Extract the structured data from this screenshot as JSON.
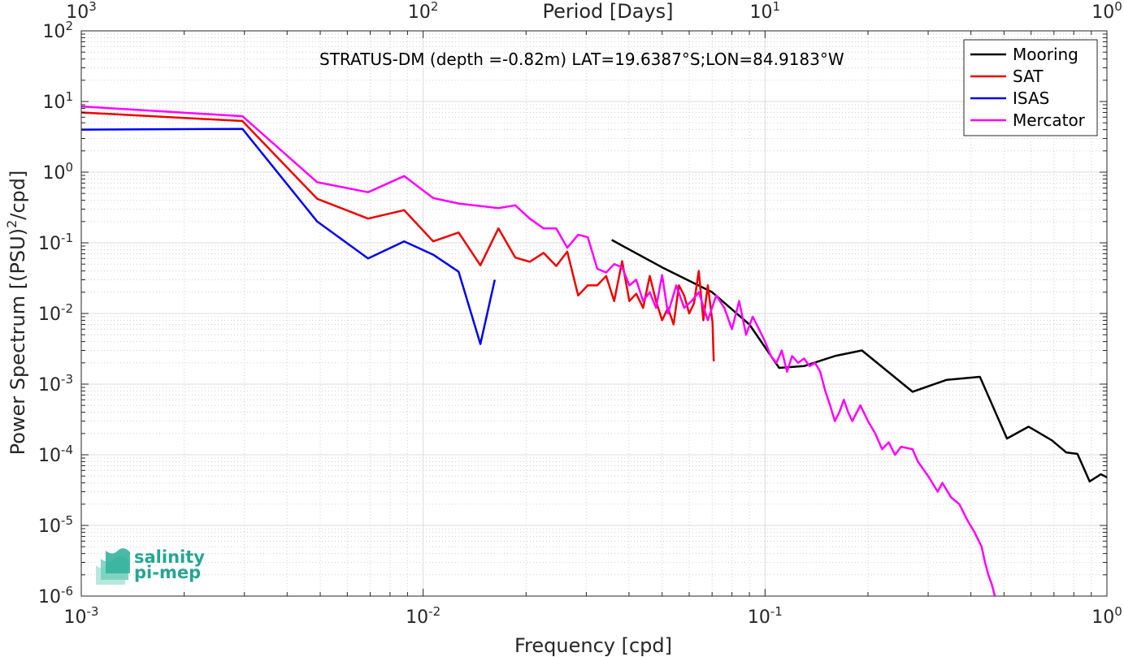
{
  "chart_data": {
    "type": "line",
    "title": "STRATUS-DM (depth =-0.82m) LAT=19.6387°S;LON=84.9183°W",
    "xlabel": "Frequency [cpd]",
    "ylabel": "Power Spectrum [(PSU)²/cpd]",
    "top_xlabel": "Period [Days]",
    "xscale": "log",
    "yscale": "log",
    "xlim": [
      0.001,
      1
    ],
    "ylim": [
      1e-06,
      100
    ],
    "grid": true,
    "legend_position": "top-right",
    "x_ticks": [
      {
        "value": 0.001,
        "base": "10",
        "exp": "-3"
      },
      {
        "value": 0.01,
        "base": "10",
        "exp": "-2"
      },
      {
        "value": 0.1,
        "base": "10",
        "exp": "-1"
      },
      {
        "value": 1,
        "base": "10",
        "exp": "0"
      }
    ],
    "top_ticks": [
      {
        "freq": 0.001,
        "base": "10",
        "exp": "3"
      },
      {
        "freq": 0.01,
        "base": "10",
        "exp": "2"
      },
      {
        "freq": 0.1,
        "base": "10",
        "exp": "1"
      },
      {
        "freq": 1,
        "base": "10",
        "exp": "0"
      }
    ],
    "y_ticks": [
      {
        "value": 1e-06,
        "base": "10",
        "exp": "-6"
      },
      {
        "value": 1e-05,
        "base": "10",
        "exp": "-5"
      },
      {
        "value": 0.0001,
        "base": "10",
        "exp": "-4"
      },
      {
        "value": 0.001,
        "base": "10",
        "exp": "-3"
      },
      {
        "value": 0.01,
        "base": "10",
        "exp": "-2"
      },
      {
        "value": 0.1,
        "base": "10",
        "exp": "-1"
      },
      {
        "value": 1,
        "base": "10",
        "exp": "0"
      },
      {
        "value": 10,
        "base": "10",
        "exp": "1"
      },
      {
        "value": 100,
        "base": "10",
        "exp": "2"
      }
    ],
    "series": [
      {
        "name": "Mooring",
        "color": "#000000",
        "points": [
          [
            0.0356,
            0.11
          ],
          [
            0.05,
            0.045
          ],
          [
            0.07,
            0.02
          ],
          [
            0.09,
            0.007
          ],
          [
            0.11,
            0.0017
          ],
          [
            0.13,
            0.0018
          ],
          [
            0.16,
            0.0025
          ],
          [
            0.192,
            0.003
          ],
          [
            0.27,
            0.00078
          ],
          [
            0.34,
            0.00115
          ],
          [
            0.425,
            0.00127
          ],
          [
            0.51,
            0.00017
          ],
          [
            0.59,
            0.00025
          ],
          [
            0.69,
            0.00016
          ],
          [
            0.76,
            0.000108
          ],
          [
            0.82,
            0.000103
          ],
          [
            0.89,
            4.2e-05
          ],
          [
            0.96,
            5.3e-05
          ],
          [
            1.0,
            4.8e-05
          ]
        ]
      },
      {
        "name": "SAT",
        "color": "#ee0000",
        "points": [
          [
            0.001,
            7.0
          ],
          [
            0.00296,
            5.3
          ],
          [
            0.0049,
            0.42
          ],
          [
            0.0069,
            0.22
          ],
          [
            0.0088,
            0.29
          ],
          [
            0.0107,
            0.105
          ],
          [
            0.0127,
            0.14
          ],
          [
            0.0147,
            0.048
          ],
          [
            0.0166,
            0.16
          ],
          [
            0.0186,
            0.062
          ],
          [
            0.0205,
            0.054
          ],
          [
            0.0225,
            0.072
          ],
          [
            0.0245,
            0.047
          ],
          [
            0.0264,
            0.075
          ],
          [
            0.0284,
            0.018
          ],
          [
            0.0303,
            0.025
          ],
          [
            0.0323,
            0.025
          ],
          [
            0.0343,
            0.034
          ],
          [
            0.0362,
            0.015
          ],
          [
            0.0382,
            0.055
          ],
          [
            0.0401,
            0.015
          ],
          [
            0.042,
            0.019
          ],
          [
            0.044,
            0.012
          ],
          [
            0.046,
            0.034
          ],
          [
            0.048,
            0.015
          ],
          [
            0.05,
            0.008
          ],
          [
            0.052,
            0.012
          ],
          [
            0.054,
            0.007
          ],
          [
            0.056,
            0.025
          ],
          [
            0.058,
            0.018
          ],
          [
            0.06,
            0.01
          ],
          [
            0.062,
            0.014
          ],
          [
            0.064,
            0.04
          ],
          [
            0.066,
            0.008
          ],
          [
            0.068,
            0.025
          ],
          [
            0.0702,
            0.0075
          ],
          [
            0.0708,
            0.0021
          ]
        ]
      },
      {
        "name": "ISAS",
        "color": "#0000ee",
        "points": [
          [
            0.001,
            4.0
          ],
          [
            0.00296,
            4.1
          ],
          [
            0.0049,
            0.2
          ],
          [
            0.0069,
            0.06
          ],
          [
            0.0088,
            0.105
          ],
          [
            0.0107,
            0.068
          ],
          [
            0.0127,
            0.039
          ],
          [
            0.0147,
            0.0037
          ],
          [
            0.0162,
            0.03
          ]
        ]
      },
      {
        "name": "Mercator",
        "color": "#ff00ff",
        "points": [
          [
            0.001,
            8.5
          ],
          [
            0.00296,
            6.2
          ],
          [
            0.0049,
            0.72
          ],
          [
            0.0069,
            0.52
          ],
          [
            0.0088,
            0.88
          ],
          [
            0.0107,
            0.43
          ],
          [
            0.0127,
            0.36
          ],
          [
            0.0166,
            0.31
          ],
          [
            0.0186,
            0.34
          ],
          [
            0.0205,
            0.22
          ],
          [
            0.0225,
            0.16
          ],
          [
            0.0245,
            0.16
          ],
          [
            0.0264,
            0.085
          ],
          [
            0.0284,
            0.13
          ],
          [
            0.0303,
            0.12
          ],
          [
            0.0323,
            0.043
          ],
          [
            0.0343,
            0.038
          ],
          [
            0.0362,
            0.05
          ],
          [
            0.0382,
            0.045
          ],
          [
            0.0401,
            0.025
          ],
          [
            0.042,
            0.03
          ],
          [
            0.044,
            0.015
          ],
          [
            0.046,
            0.02
          ],
          [
            0.048,
            0.012
          ],
          [
            0.05,
            0.035
          ],
          [
            0.052,
            0.01
          ],
          [
            0.055,
            0.025
          ],
          [
            0.058,
            0.012
          ],
          [
            0.061,
            0.015
          ],
          [
            0.064,
            0.02
          ],
          [
            0.068,
            0.008
          ],
          [
            0.072,
            0.018
          ],
          [
            0.076,
            0.012
          ],
          [
            0.08,
            0.006
          ],
          [
            0.084,
            0.015
          ],
          [
            0.088,
            0.005
          ],
          [
            0.092,
            0.009
          ],
          [
            0.096,
            0.006
          ],
          [
            0.1,
            0.004
          ],
          [
            0.104,
            0.0025
          ],
          [
            0.108,
            0.002
          ],
          [
            0.112,
            0.003
          ],
          [
            0.116,
            0.0015
          ],
          [
            0.12,
            0.0025
          ],
          [
            0.125,
            0.002
          ],
          [
            0.13,
            0.0023
          ],
          [
            0.135,
            0.0018
          ],
          [
            0.14,
            0.002
          ],
          [
            0.145,
            0.0015
          ],
          [
            0.15,
            0.0008
          ],
          [
            0.155,
            0.0005
          ],
          [
            0.16,
            0.0003
          ],
          [
            0.165,
            0.0004
          ],
          [
            0.17,
            0.0006
          ],
          [
            0.175,
            0.0004
          ],
          [
            0.18,
            0.0003
          ],
          [
            0.19,
            0.0005
          ],
          [
            0.2,
            0.0003
          ],
          [
            0.21,
            0.0002
          ],
          [
            0.22,
            0.00012
          ],
          [
            0.23,
            0.00015
          ],
          [
            0.24,
            0.0001
          ],
          [
            0.25,
            0.00013
          ],
          [
            0.27,
            0.00012
          ],
          [
            0.28,
            8e-05
          ],
          [
            0.3,
            5e-05
          ],
          [
            0.32,
            3e-05
          ],
          [
            0.33,
            4e-05
          ],
          [
            0.35,
            2.5e-05
          ],
          [
            0.37,
            2e-05
          ],
          [
            0.39,
            1.2e-05
          ],
          [
            0.41,
            8e-06
          ],
          [
            0.43,
            5e-06
          ],
          [
            0.44,
            3e-06
          ],
          [
            0.45,
            2e-06
          ],
          [
            0.46,
            1.5e-06
          ],
          [
            0.47,
            1e-06
          ]
        ]
      }
    ]
  },
  "logo": {
    "line1": "salinity",
    "line2": "pi-mep"
  }
}
